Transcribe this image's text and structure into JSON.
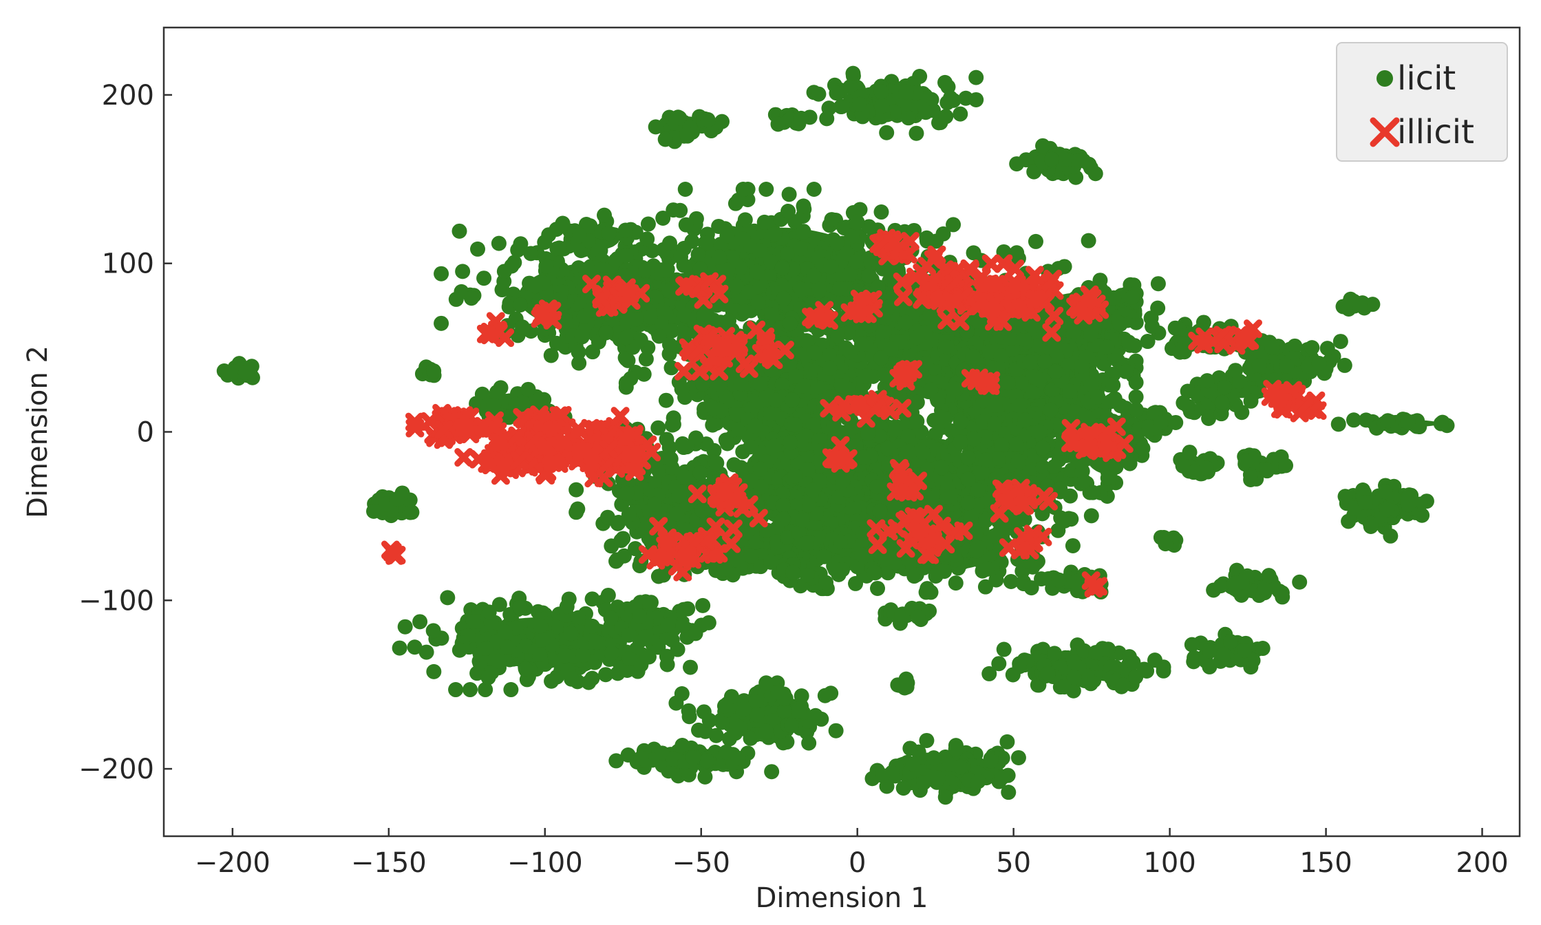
{
  "chart_data": {
    "type": "scatter",
    "title": "",
    "xlabel": "Dimension 1",
    "ylabel": "Dimension 2",
    "xlim": [
      -222,
      212
    ],
    "ylim": [
      -240,
      240
    ],
    "xticks": [
      -200,
      -150,
      -100,
      -50,
      0,
      50,
      100,
      150,
      200
    ],
    "yticks": [
      -200,
      -100,
      0,
      100,
      200
    ],
    "xtick_labels": [
      "−200",
      "−150",
      "−100",
      "−50",
      "0",
      "50",
      "100",
      "150",
      "200"
    ],
    "ytick_labels": [
      "−200",
      "−100",
      "0",
      "100",
      "200"
    ],
    "grid": false,
    "legend_position": "top-right",
    "series": [
      {
        "name": "licit",
        "marker": "circle",
        "color": "#2e7d1f",
        "clusters": [
          {
            "cx": -197,
            "cy": 35,
            "rx": 5,
            "ry": 4,
            "n": 25
          },
          {
            "cx": -148,
            "cy": -43,
            "rx": 6,
            "ry": 6,
            "n": 30
          },
          {
            "cx": -138,
            "cy": 36,
            "rx": 3,
            "ry": 3,
            "n": 8
          },
          {
            "cx": -55,
            "cy": 182,
            "rx": 10,
            "ry": 7,
            "n": 40
          },
          {
            "cx": -22,
            "cy": 185,
            "rx": 4,
            "ry": 4,
            "n": 10
          },
          {
            "cx": 10,
            "cy": 195,
            "rx": 20,
            "ry": 14,
            "n": 120
          },
          {
            "cx": 65,
            "cy": 160,
            "rx": 10,
            "ry": 7,
            "n": 40
          },
          {
            "cx": -80,
            "cy": 80,
            "rx": 38,
            "ry": 28,
            "n": 320
          },
          {
            "cx": -85,
            "cy": 115,
            "rx": 12,
            "ry": 10,
            "n": 60
          },
          {
            "cx": -25,
            "cy": 95,
            "rx": 40,
            "ry": 35,
            "n": 420
          },
          {
            "cx": -25,
            "cy": 30,
            "rx": 35,
            "ry": 40,
            "n": 380
          },
          {
            "cx": 25,
            "cy": 60,
            "rx": 35,
            "ry": 45,
            "n": 400
          },
          {
            "cx": 50,
            "cy": 20,
            "rx": 28,
            "ry": 40,
            "n": 350
          },
          {
            "cx": 70,
            "cy": 60,
            "rx": 20,
            "ry": 30,
            "n": 200
          },
          {
            "cx": 0,
            "cy": -30,
            "rx": 50,
            "ry": 45,
            "n": 500
          },
          {
            "cx": -55,
            "cy": -50,
            "rx": 25,
            "ry": 25,
            "n": 220
          },
          {
            "cx": -30,
            "cy": -70,
            "rx": 35,
            "ry": 15,
            "n": 200
          },
          {
            "cx": 20,
            "cy": -70,
            "rx": 35,
            "ry": 18,
            "n": 200
          },
          {
            "cx": 45,
            "cy": -30,
            "rx": 25,
            "ry": 30,
            "n": 220
          },
          {
            "cx": -110,
            "cy": 15,
            "rx": 12,
            "ry": 8,
            "n": 40
          },
          {
            "cx": -75,
            "cy": -15,
            "rx": 12,
            "ry": 12,
            "n": 50
          },
          {
            "cx": 80,
            "cy": -10,
            "rx": 10,
            "ry": 20,
            "n": 80
          },
          {
            "cx": -100,
            "cy": -125,
            "rx": 35,
            "ry": 20,
            "n": 320
          },
          {
            "cx": -65,
            "cy": -112,
            "rx": 15,
            "ry": 8,
            "n": 60
          },
          {
            "cx": -30,
            "cy": -170,
            "rx": 20,
            "ry": 15,
            "n": 130
          },
          {
            "cx": -52,
            "cy": -195,
            "rx": 18,
            "ry": 7,
            "n": 80
          },
          {
            "cx": 30,
            "cy": -200,
            "rx": 18,
            "ry": 12,
            "n": 120
          },
          {
            "cx": 70,
            "cy": -140,
            "rx": 20,
            "ry": 10,
            "n": 130
          },
          {
            "cx": 15,
            "cy": -108,
            "rx": 8,
            "ry": 4,
            "n": 25
          },
          {
            "cx": 15,
            "cy": -150,
            "rx": 3,
            "ry": 3,
            "n": 8
          },
          {
            "cx": 70,
            "cy": -88,
            "rx": 12,
            "ry": 5,
            "n": 40
          },
          {
            "cx": 112,
            "cy": 55,
            "rx": 15,
            "ry": 8,
            "n": 70
          },
          {
            "cx": 135,
            "cy": 40,
            "rx": 15,
            "ry": 12,
            "n": 90
          },
          {
            "cx": 115,
            "cy": 20,
            "rx": 10,
            "ry": 10,
            "n": 50
          },
          {
            "cx": 160,
            "cy": 75,
            "rx": 4,
            "ry": 4,
            "n": 10
          },
          {
            "cx": 175,
            "cy": 5,
            "rx": 15,
            "ry": 3,
            "n": 30
          },
          {
            "cx": 168,
            "cy": -45,
            "rx": 12,
            "ry": 12,
            "n": 70
          },
          {
            "cx": 128,
            "cy": -90,
            "rx": 10,
            "ry": 6,
            "n": 40
          },
          {
            "cx": 120,
            "cy": -130,
            "rx": 12,
            "ry": 7,
            "n": 40
          },
          {
            "cx": 110,
            "cy": -20,
            "rx": 8,
            "ry": 6,
            "n": 25
          },
          {
            "cx": 128,
            "cy": -20,
            "rx": 8,
            "ry": 6,
            "n": 25
          },
          {
            "cx": 100,
            "cy": -65,
            "rx": 4,
            "ry": 3,
            "n": 12
          },
          {
            "cx": 95,
            "cy": 5,
            "rx": 6,
            "ry": 8,
            "n": 30
          },
          {
            "cx": 85,
            "cy": 80,
            "rx": 4,
            "ry": 3,
            "n": 10
          },
          {
            "cx": -60,
            "cy": -30,
            "rx": 8,
            "ry": 10,
            "n": 30
          }
        ]
      },
      {
        "name": "illicit",
        "marker": "x",
        "color": "#e8392b",
        "clusters": [
          {
            "cx": -130,
            "cy": 3,
            "rx": 9,
            "ry": 8,
            "n": 40
          },
          {
            "cx": -105,
            "cy": -10,
            "rx": 15,
            "ry": 18,
            "n": 120
          },
          {
            "cx": -80,
            "cy": -10,
            "rx": 12,
            "ry": 14,
            "n": 80
          },
          {
            "cx": -147,
            "cy": -72,
            "rx": 3,
            "ry": 3,
            "n": 4
          },
          {
            "cx": -115,
            "cy": 60,
            "rx": 4,
            "ry": 4,
            "n": 8
          },
          {
            "cx": -75,
            "cy": 80,
            "rx": 8,
            "ry": 10,
            "n": 25
          },
          {
            "cx": -40,
            "cy": 50,
            "rx": 12,
            "ry": 10,
            "n": 40
          },
          {
            "cx": -50,
            "cy": 85,
            "rx": 5,
            "ry": 5,
            "n": 12
          },
          {
            "cx": -13,
            "cy": 68,
            "rx": 3,
            "ry": 3,
            "n": 6
          },
          {
            "cx": 10,
            "cy": 110,
            "rx": 6,
            "ry": 5,
            "n": 20
          },
          {
            "cx": 30,
            "cy": 85,
            "rx": 12,
            "ry": 15,
            "n": 50
          },
          {
            "cx": 50,
            "cy": 80,
            "rx": 15,
            "ry": 15,
            "n": 60
          },
          {
            "cx": 72,
            "cy": 75,
            "rx": 5,
            "ry": 5,
            "n": 12
          },
          {
            "cx": 15,
            "cy": 35,
            "rx": 4,
            "ry": 4,
            "n": 10
          },
          {
            "cx": 5,
            "cy": 15,
            "rx": 10,
            "ry": 5,
            "n": 20
          },
          {
            "cx": 40,
            "cy": 30,
            "rx": 4,
            "ry": 4,
            "n": 8
          },
          {
            "cx": 75,
            "cy": -5,
            "rx": 8,
            "ry": 8,
            "n": 30
          },
          {
            "cx": -40,
            "cy": -40,
            "rx": 8,
            "ry": 8,
            "n": 25
          },
          {
            "cx": -55,
            "cy": -70,
            "rx": 12,
            "ry": 10,
            "n": 35
          },
          {
            "cx": -5,
            "cy": -15,
            "rx": 5,
            "ry": 5,
            "n": 10
          },
          {
            "cx": 15,
            "cy": -30,
            "rx": 6,
            "ry": 8,
            "n": 15
          },
          {
            "cx": 20,
            "cy": -60,
            "rx": 10,
            "ry": 12,
            "n": 35
          },
          {
            "cx": 50,
            "cy": -40,
            "rx": 8,
            "ry": 6,
            "n": 20
          },
          {
            "cx": 55,
            "cy": -65,
            "rx": 5,
            "ry": 5,
            "n": 10
          },
          {
            "cx": 118,
            "cy": 55,
            "rx": 10,
            "ry": 5,
            "n": 15
          },
          {
            "cx": 137,
            "cy": 20,
            "rx": 8,
            "ry": 7,
            "n": 20
          },
          {
            "cx": 145,
            "cy": 15,
            "rx": 3,
            "ry": 3,
            "n": 6
          },
          {
            "cx": 75,
            "cy": -90,
            "rx": 3,
            "ry": 3,
            "n": 4
          },
          {
            "cx": -100,
            "cy": 70,
            "rx": 4,
            "ry": 4,
            "n": 8
          },
          {
            "cx": 0,
            "cy": 75,
            "rx": 5,
            "ry": 5,
            "n": 10
          }
        ]
      }
    ]
  }
}
